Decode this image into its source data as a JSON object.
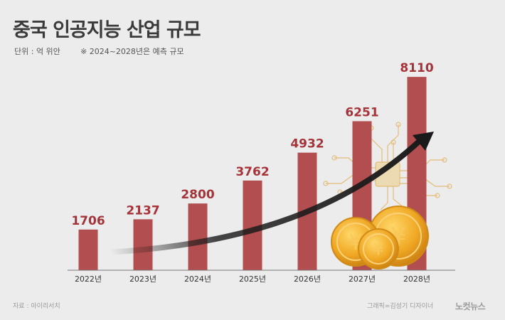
{
  "header": {
    "title": "중국 인공지능 산업 규모",
    "unit": "단위 : 억 위안",
    "note": "※ 2024~2028년은 예측 규모"
  },
  "footer": {
    "source": "자료 : 아이리서치",
    "credit": "그래픽=김성기 디자이너",
    "logo": "노컷뉴스"
  },
  "chart_data": {
    "type": "bar",
    "categories": [
      "2022년",
      "2023년",
      "2024년",
      "2025년",
      "2026년",
      "2027년",
      "2028년"
    ],
    "values": [
      1706,
      2137,
      2800,
      3762,
      4932,
      6251,
      8110
    ],
    "ylim": [
      0,
      8800
    ],
    "grid": false,
    "bar_color": "#b24e4f",
    "label_color": "#a5343a"
  }
}
